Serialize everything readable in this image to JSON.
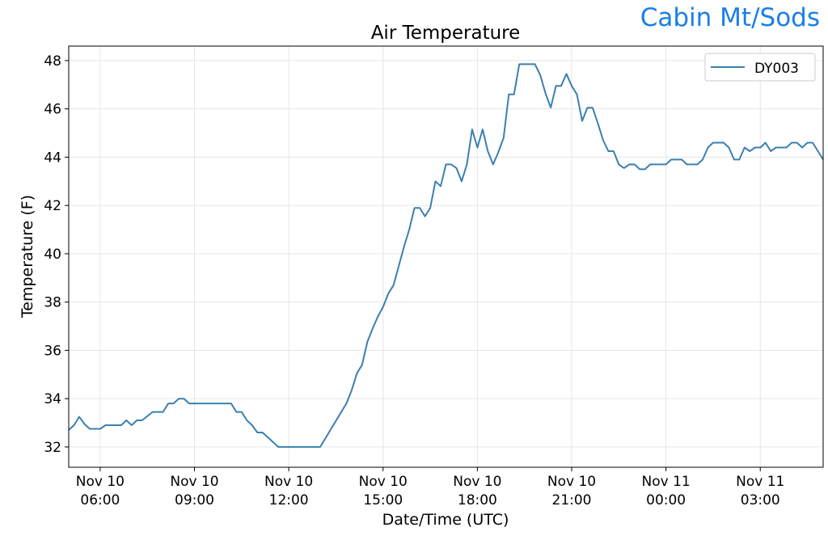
{
  "header": {
    "site_name": "Cabin Mt/Sods",
    "site_color": "#1a7fe8"
  },
  "chart_data": {
    "type": "line",
    "title": "Air Temperature",
    "xlabel": "Date/Time (UTC)",
    "ylabel": "Temperature (F)",
    "xlim": [
      "Nov 10 05:00",
      "Nov 11 05:00"
    ],
    "ylim": [
      31.16,
      48.6
    ],
    "grid": true,
    "legend_position": "top-right",
    "x_ticks": [
      {
        "x": "Nov 10 06:00",
        "date": "Nov 10",
        "time": "06:00"
      },
      {
        "x": "Nov 10 09:00",
        "date": "Nov 10",
        "time": "09:00"
      },
      {
        "x": "Nov 10 12:00",
        "date": "Nov 10",
        "time": "12:00"
      },
      {
        "x": "Nov 10 15:00",
        "date": "Nov 10",
        "time": "15:00"
      },
      {
        "x": "Nov 10 18:00",
        "date": "Nov 10",
        "time": "18:00"
      },
      {
        "x": "Nov 10 21:00",
        "date": "Nov 10",
        "time": "21:00"
      },
      {
        "x": "Nov 11 00:00",
        "date": "Nov 11",
        "time": "00:00"
      },
      {
        "x": "Nov 11 03:00",
        "date": "Nov 11",
        "time": "03:00"
      }
    ],
    "y_ticks": [
      "32",
      "34",
      "36",
      "38",
      "40",
      "42",
      "44",
      "46",
      "48"
    ],
    "series": [
      {
        "name": "DY003",
        "color": "#3b80b0",
        "points": [
          [
            "Nov 10 05:00",
            32.7
          ],
          [
            "Nov 10 05:10",
            32.9
          ],
          [
            "Nov 10 05:20",
            33.25
          ],
          [
            "Nov 10 05:30",
            32.95
          ],
          [
            "Nov 10 05:40",
            32.75
          ],
          [
            "Nov 10 06:00",
            32.75
          ],
          [
            "Nov 10 06:10",
            32.9
          ],
          [
            "Nov 10 06:40",
            32.9
          ],
          [
            "Nov 10 06:50",
            33.1
          ],
          [
            "Nov 10 07:00",
            32.9
          ],
          [
            "Nov 10 07:10",
            33.1
          ],
          [
            "Nov 10 07:20",
            33.1
          ],
          [
            "Nov 10 07:40",
            33.45
          ],
          [
            "Nov 10 08:00",
            33.45
          ],
          [
            "Nov 10 08:10",
            33.8
          ],
          [
            "Nov 10 08:20",
            33.8
          ],
          [
            "Nov 10 08:30",
            34.0
          ],
          [
            "Nov 10 08:40",
            34.0
          ],
          [
            "Nov 10 08:50",
            33.8
          ],
          [
            "Nov 10 10:10",
            33.8
          ],
          [
            "Nov 10 10:20",
            33.45
          ],
          [
            "Nov 10 10:30",
            33.45
          ],
          [
            "Nov 10 10:40",
            33.1
          ],
          [
            "Nov 10 10:50",
            32.9
          ],
          [
            "Nov 10 11:00",
            32.6
          ],
          [
            "Nov 10 11:10",
            32.6
          ],
          [
            "Nov 10 11:40",
            32.0
          ],
          [
            "Nov 10 13:00",
            32.0
          ],
          [
            "Nov 10 13:50",
            33.8
          ],
          [
            "Nov 10 14:00",
            34.35
          ],
          [
            "Nov 10 14:10",
            35.05
          ],
          [
            "Nov 10 14:20",
            35.4
          ],
          [
            "Nov 10 14:30",
            36.35
          ],
          [
            "Nov 10 14:40",
            36.9
          ],
          [
            "Nov 10 14:50",
            37.4
          ],
          [
            "Nov 10 15:00",
            37.8
          ],
          [
            "Nov 10 15:10",
            38.35
          ],
          [
            "Nov 10 15:20",
            38.7
          ],
          [
            "Nov 10 15:30",
            39.5
          ],
          [
            "Nov 10 15:40",
            40.3
          ],
          [
            "Nov 10 15:50",
            41.0
          ],
          [
            "Nov 10 16:00",
            41.9
          ],
          [
            "Nov 10 16:10",
            41.9
          ],
          [
            "Nov 10 16:20",
            41.55
          ],
          [
            "Nov 10 16:30",
            41.9
          ],
          [
            "Nov 10 16:40",
            43.0
          ],
          [
            "Nov 10 16:50",
            42.8
          ],
          [
            "Nov 10 17:00",
            43.7
          ],
          [
            "Nov 10 17:10",
            43.7
          ],
          [
            "Nov 10 17:20",
            43.55
          ],
          [
            "Nov 10 17:30",
            43.0
          ],
          [
            "Nov 10 17:40",
            43.7
          ],
          [
            "Nov 10 17:50",
            45.15
          ],
          [
            "Nov 10 18:00",
            44.4
          ],
          [
            "Nov 10 18:10",
            45.15
          ],
          [
            "Nov 10 18:20",
            44.25
          ],
          [
            "Nov 10 18:30",
            43.7
          ],
          [
            "Nov 10 18:40",
            44.2
          ],
          [
            "Nov 10 18:50",
            44.8
          ],
          [
            "Nov 10 19:00",
            46.6
          ],
          [
            "Nov 10 19:10",
            46.6
          ],
          [
            "Nov 10 19:20",
            47.85
          ],
          [
            "Nov 10 19:50",
            47.85
          ],
          [
            "Nov 10 20:00",
            47.4
          ],
          [
            "Nov 10 20:10",
            46.65
          ],
          [
            "Nov 10 20:20",
            46.05
          ],
          [
            "Nov 10 20:30",
            46.95
          ],
          [
            "Nov 10 20:40",
            46.95
          ],
          [
            "Nov 10 20:50",
            47.45
          ],
          [
            "Nov 10 21:00",
            46.95
          ],
          [
            "Nov 10 21:10",
            46.6
          ],
          [
            "Nov 10 21:20",
            45.5
          ],
          [
            "Nov 10 21:30",
            46.05
          ],
          [
            "Nov 10 21:40",
            46.05
          ],
          [
            "Nov 10 21:50",
            45.4
          ],
          [
            "Nov 10 22:00",
            44.7
          ],
          [
            "Nov 10 22:10",
            44.25
          ],
          [
            "Nov 10 22:20",
            44.25
          ],
          [
            "Nov 10 22:30",
            43.7
          ],
          [
            "Nov 10 22:40",
            43.55
          ],
          [
            "Nov 10 22:50",
            43.7
          ],
          [
            "Nov 10 23:00",
            43.7
          ],
          [
            "Nov 10 23:10",
            43.5
          ],
          [
            "Nov 10 23:20",
            43.5
          ],
          [
            "Nov 10 23:30",
            43.7
          ],
          [
            "Nov 11 00:00",
            43.7
          ],
          [
            "Nov 11 00:10",
            43.9
          ],
          [
            "Nov 11 00:30",
            43.9
          ],
          [
            "Nov 11 00:40",
            43.7
          ],
          [
            "Nov 11 01:00",
            43.7
          ],
          [
            "Nov 11 01:10",
            43.9
          ],
          [
            "Nov 11 01:20",
            44.4
          ],
          [
            "Nov 11 01:30",
            44.6
          ],
          [
            "Nov 11 01:50",
            44.6
          ],
          [
            "Nov 11 02:00",
            44.4
          ],
          [
            "Nov 11 02:10",
            43.9
          ],
          [
            "Nov 11 02:20",
            43.9
          ],
          [
            "Nov 11 02:30",
            44.4
          ],
          [
            "Nov 11 02:40",
            44.25
          ],
          [
            "Nov 11 02:50",
            44.4
          ],
          [
            "Nov 11 03:00",
            44.4
          ],
          [
            "Nov 11 03:10",
            44.6
          ],
          [
            "Nov 11 03:20",
            44.25
          ],
          [
            "Nov 11 03:30",
            44.4
          ],
          [
            "Nov 11 03:50",
            44.4
          ],
          [
            "Nov 11 04:00",
            44.6
          ],
          [
            "Nov 11 04:10",
            44.6
          ],
          [
            "Nov 11 04:20",
            44.4
          ],
          [
            "Nov 11 04:30",
            44.6
          ],
          [
            "Nov 11 04:40",
            44.6
          ],
          [
            "Nov 11 05:00",
            43.9
          ]
        ]
      }
    ]
  }
}
